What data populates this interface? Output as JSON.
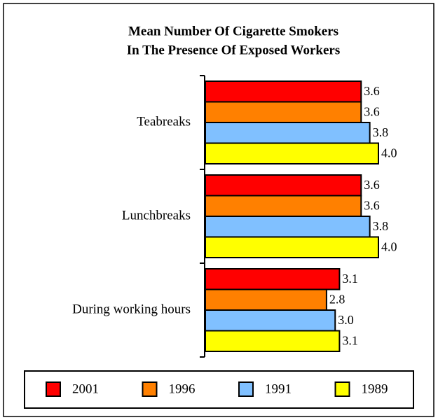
{
  "chart_data": {
    "type": "barh",
    "title": [
      "Mean Number Of Cigarette Smokers",
      "In The Presence Of Exposed Workers"
    ],
    "categories": [
      "Teabreaks",
      "Lunchbreaks",
      "During working hours"
    ],
    "series": [
      {
        "name": "2001",
        "color": "#ff0000",
        "values": [
          3.6,
          3.6,
          3.1
        ],
        "value_labels": [
          "3.6",
          "3.6",
          "3.1"
        ]
      },
      {
        "name": "1996",
        "color": "#ff8000",
        "values": [
          3.6,
          3.6,
          2.8
        ],
        "value_labels": [
          "3.6",
          "3.6",
          "2.8"
        ]
      },
      {
        "name": "1991",
        "color": "#80c0ff",
        "values": [
          3.8,
          3.8,
          3.0
        ],
        "value_labels": [
          "3.8",
          "3.8",
          "3.0"
        ]
      },
      {
        "name": "1989",
        "color": "#ffff00",
        "values": [
          4.0,
          4.0,
          3.1
        ],
        "value_labels": [
          "4.0",
          "4.0",
          "3.1"
        ]
      }
    ],
    "xlim": [
      0,
      4
    ]
  }
}
